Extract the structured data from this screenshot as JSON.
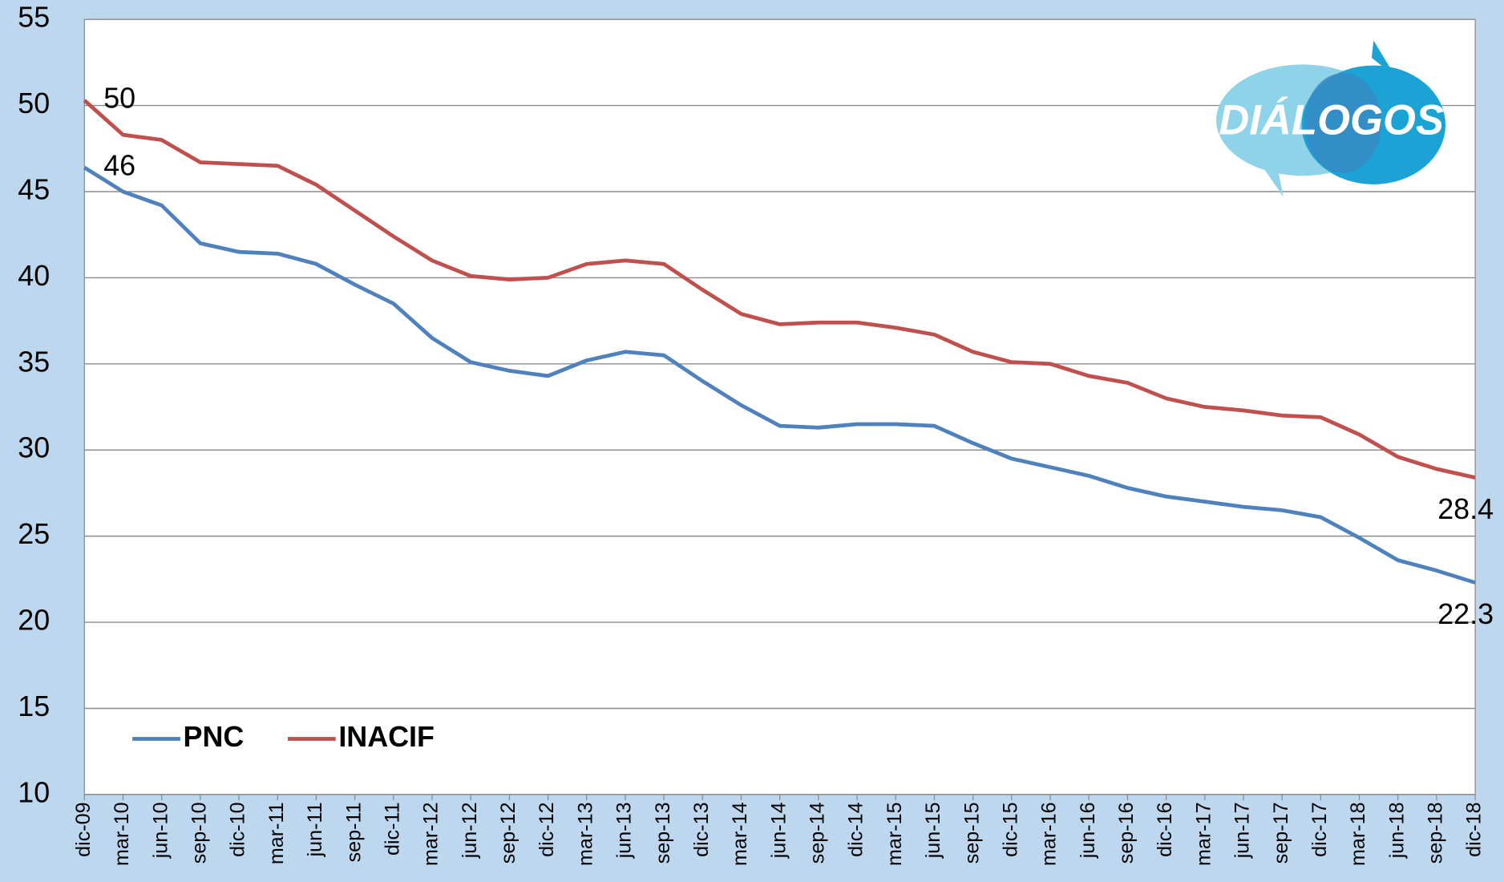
{
  "chart_data": {
    "type": "line",
    "logo": "DIÁLOGOS",
    "categories": [
      "dic-09",
      "mar-10",
      "jun-10",
      "sep-10",
      "dic-10",
      "mar-11",
      "jun-11",
      "sep-11",
      "dic-11",
      "mar-12",
      "jun-12",
      "sep-12",
      "dic-12",
      "mar-13",
      "jun-13",
      "sep-13",
      "dic-13",
      "mar-14",
      "jun-14",
      "sep-14",
      "dic-14",
      "mar-15",
      "jun-15",
      "sep-15",
      "dic-15",
      "mar-16",
      "jun-16",
      "sep-16",
      "dic-16",
      "mar-17",
      "jun-17",
      "sep-17",
      "dic-17",
      "mar-18",
      "jun-18",
      "sep-18",
      "dic-18"
    ],
    "series": [
      {
        "name": "PNC",
        "color": "#4f81bd",
        "values": [
          46.4,
          45.0,
          44.2,
          42.0,
          41.5,
          41.4,
          40.8,
          39.6,
          38.5,
          36.5,
          35.1,
          34.6,
          34.3,
          35.2,
          35.7,
          35.5,
          34.0,
          32.6,
          31.4,
          31.3,
          31.5,
          31.5,
          31.4,
          30.4,
          29.5,
          29.0,
          28.5,
          27.8,
          27.3,
          27.0,
          26.7,
          26.5,
          26.1,
          24.9,
          23.6,
          23.0,
          22.3
        ],
        "value_labels": [
          "46",
          null,
          null,
          null,
          null,
          null,
          null,
          null,
          null,
          null,
          null,
          null,
          null,
          null,
          null,
          null,
          null,
          null,
          null,
          null,
          null,
          null,
          null,
          null,
          null,
          null,
          null,
          null,
          null,
          null,
          null,
          null,
          null,
          null,
          null,
          null,
          "22.3"
        ]
      },
      {
        "name": "INACIF",
        "color": "#c0504d",
        "values": [
          50.3,
          48.3,
          48.0,
          46.7,
          46.6,
          46.5,
          45.4,
          43.9,
          42.4,
          41.0,
          40.1,
          39.9,
          40.0,
          40.8,
          41.0,
          40.8,
          39.3,
          37.9,
          37.3,
          37.4,
          37.4,
          37.1,
          36.7,
          35.7,
          35.1,
          35.0,
          34.3,
          33.9,
          33.0,
          32.5,
          32.3,
          32.0,
          31.9,
          30.9,
          29.6,
          28.9,
          28.4
        ],
        "value_labels": [
          "50",
          null,
          null,
          null,
          null,
          null,
          null,
          null,
          null,
          null,
          null,
          null,
          null,
          null,
          null,
          null,
          null,
          null,
          null,
          null,
          null,
          null,
          null,
          null,
          null,
          null,
          null,
          null,
          null,
          null,
          null,
          null,
          null,
          null,
          null,
          null,
          "28.4"
        ]
      }
    ],
    "ylim": [
      10,
      55
    ],
    "yticks": [
      10,
      15,
      20,
      25,
      30,
      35,
      40,
      45,
      50,
      55
    ],
    "grid": true,
    "legend": "lower left"
  }
}
